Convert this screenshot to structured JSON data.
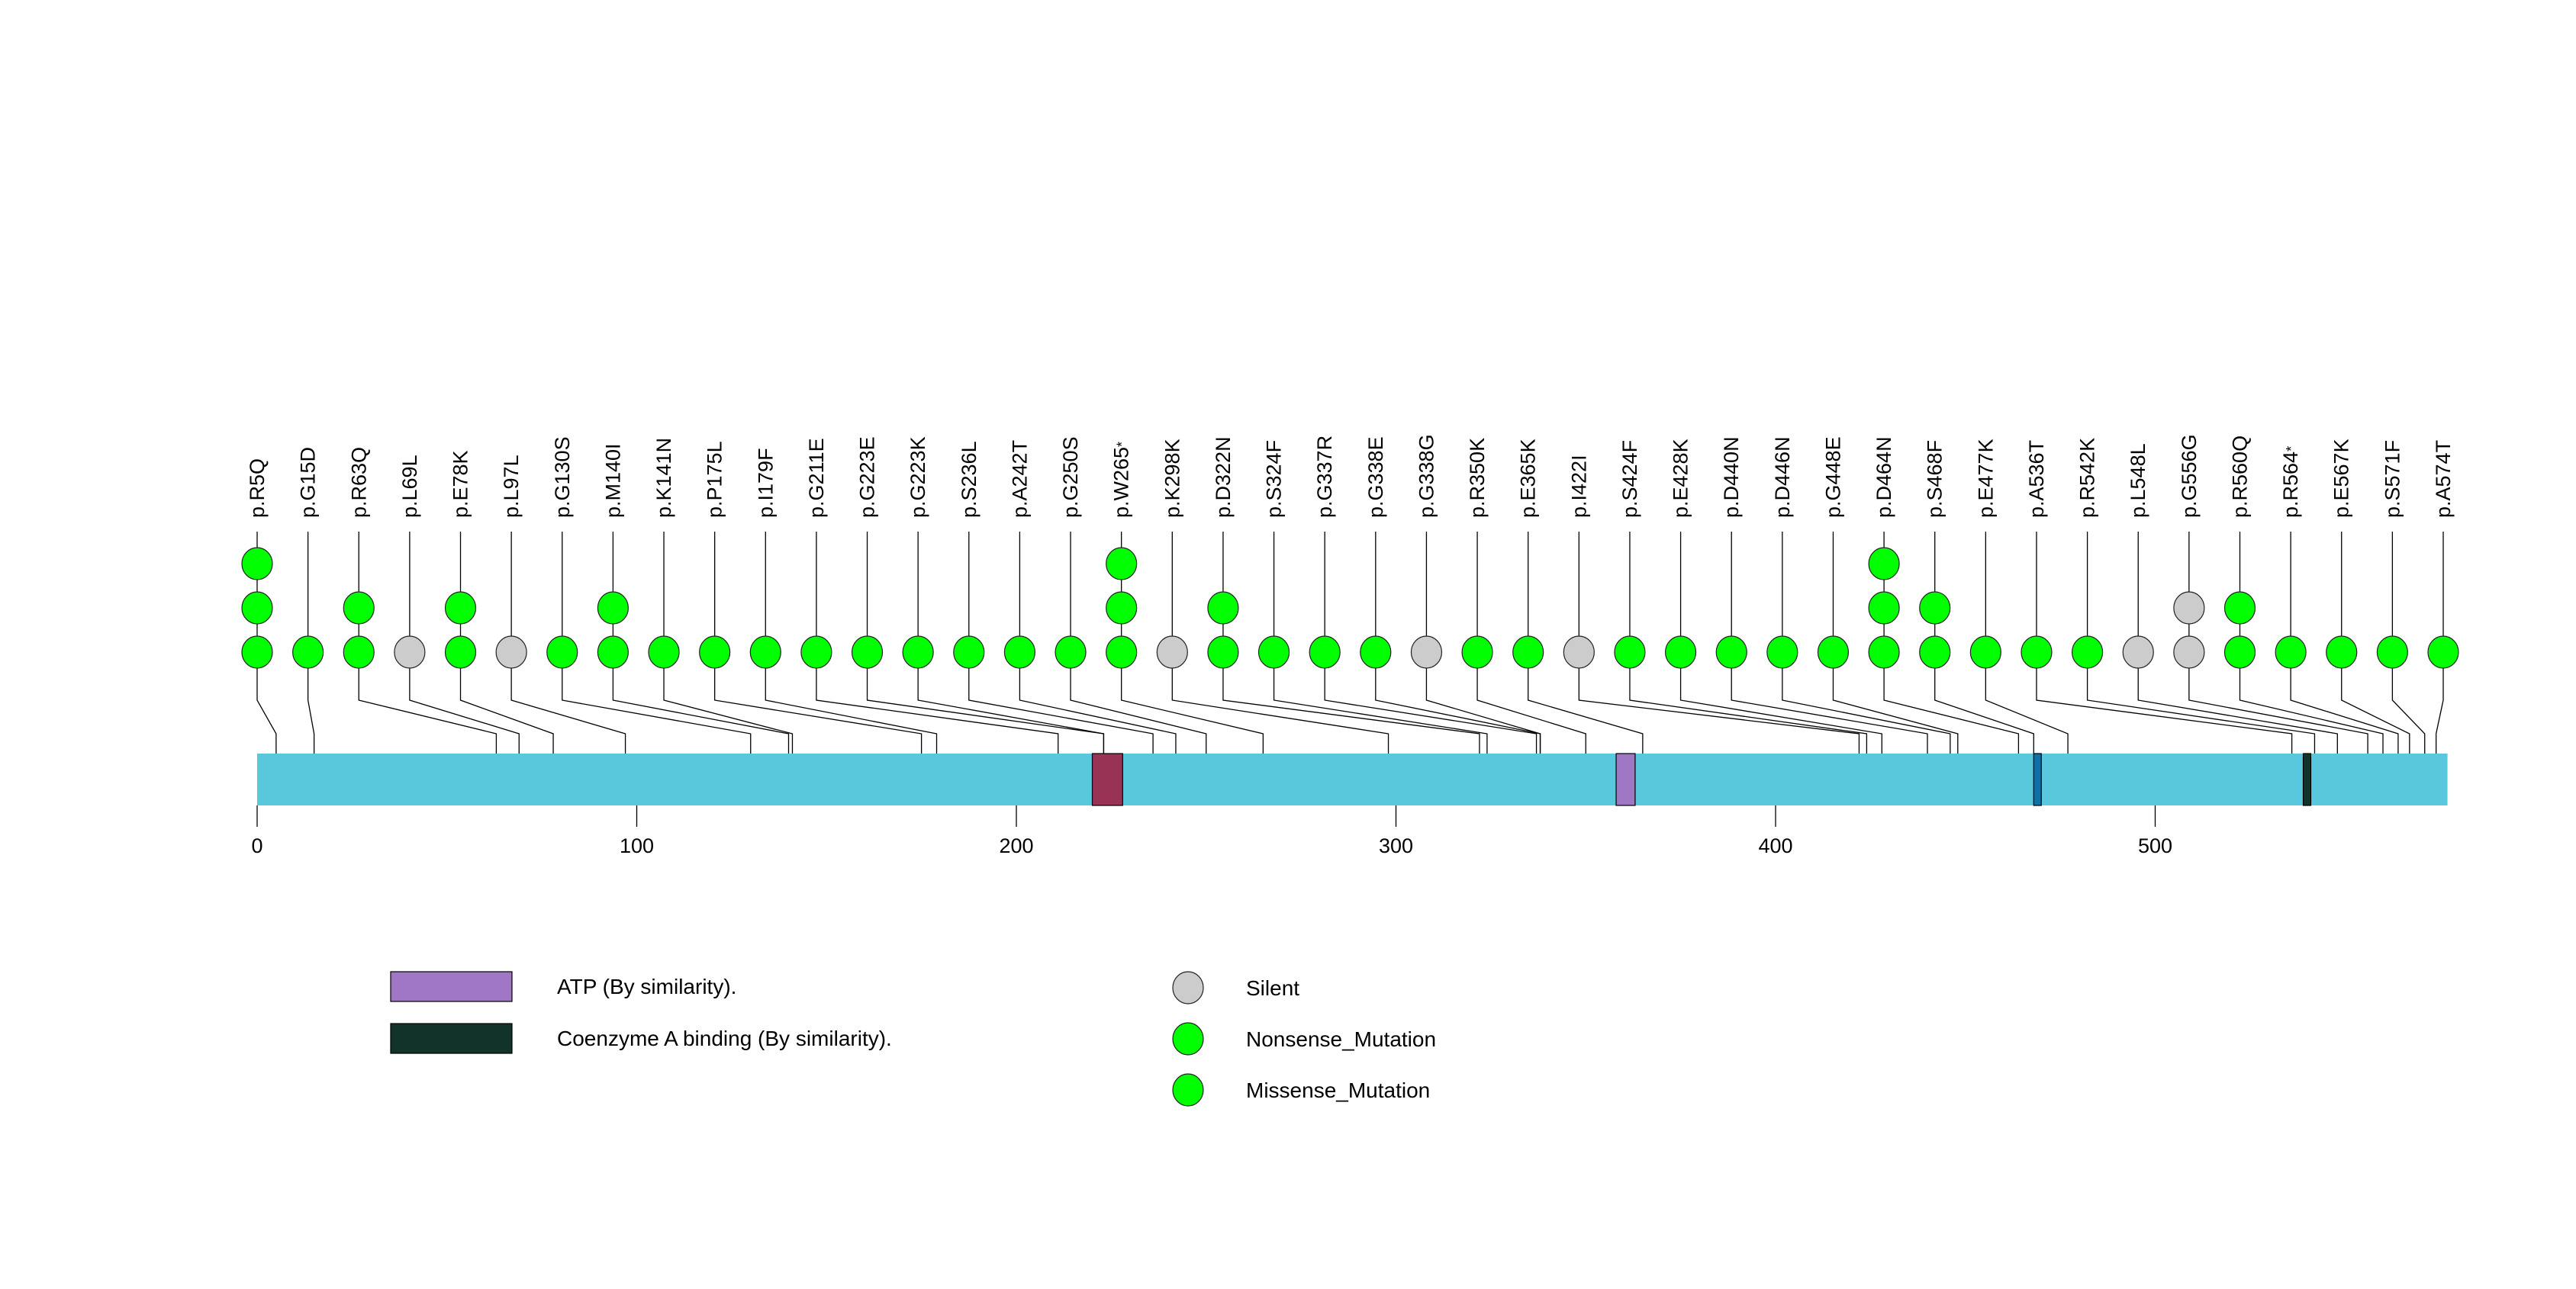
{
  "chart_data": {
    "type": "lollipop",
    "title": "",
    "xlabel": "",
    "ylabel": "",
    "protein_length": 577,
    "xlim": [
      0,
      577
    ],
    "x_ticks": [
      0,
      100,
      200,
      300,
      400,
      500
    ],
    "x_tick_labels": [
      "0",
      "100",
      "200",
      "300",
      "400",
      "500"
    ],
    "protein_color": "#5AC8DC",
    "domains": [
      {
        "name": "region-1",
        "start": 220,
        "end": 228,
        "color": "#993355",
        "in_legend": false
      },
      {
        "name": "ATP (By similarity).",
        "start": 358,
        "end": 363,
        "color": "#A077C4",
        "in_legend": true
      },
      {
        "name": "region-3",
        "start": 468,
        "end": 470,
        "color": "#1071A6",
        "in_legend": false
      },
      {
        "name": "Coenzyme A binding (By similarity).",
        "start": 539,
        "end": 541,
        "color": "#12332A",
        "in_legend": true
      }
    ],
    "mutation_types": [
      {
        "name": "Silent",
        "color": "#CCCCCC"
      },
      {
        "name": "Nonsense_Mutation",
        "color": "#00FF00"
      },
      {
        "name": "Missense_Mutation",
        "color": "#00FF00"
      }
    ],
    "mutations": [
      {
        "label": "p.R5Q",
        "position": 5,
        "counts": [
          "Missense_Mutation",
          "Missense_Mutation",
          "Missense_Mutation"
        ]
      },
      {
        "label": "p.G15D",
        "position": 15,
        "counts": [
          "Missense_Mutation"
        ]
      },
      {
        "label": "p.R63Q",
        "position": 63,
        "counts": [
          "Missense_Mutation",
          "Missense_Mutation"
        ]
      },
      {
        "label": "p.L69L",
        "position": 69,
        "counts": [
          "Silent"
        ]
      },
      {
        "label": "p.E78K",
        "position": 78,
        "counts": [
          "Missense_Mutation",
          "Missense_Mutation"
        ]
      },
      {
        "label": "p.L97L",
        "position": 97,
        "counts": [
          "Silent"
        ]
      },
      {
        "label": "p.G130S",
        "position": 130,
        "counts": [
          "Missense_Mutation"
        ]
      },
      {
        "label": "p.M140I",
        "position": 140,
        "counts": [
          "Missense_Mutation",
          "Missense_Mutation"
        ]
      },
      {
        "label": "p.K141N",
        "position": 141,
        "counts": [
          "Missense_Mutation"
        ]
      },
      {
        "label": "p.P175L",
        "position": 175,
        "counts": [
          "Missense_Mutation"
        ]
      },
      {
        "label": "p.I179F",
        "position": 179,
        "counts": [
          "Missense_Mutation"
        ]
      },
      {
        "label": "p.G211E",
        "position": 211,
        "counts": [
          "Missense_Mutation"
        ]
      },
      {
        "label": "p.G223E",
        "position": 223,
        "counts": [
          "Missense_Mutation"
        ]
      },
      {
        "label": "p.G223K",
        "position": 223,
        "counts": [
          "Missense_Mutation"
        ]
      },
      {
        "label": "p.S236L",
        "position": 236,
        "counts": [
          "Missense_Mutation"
        ]
      },
      {
        "label": "p.A242T",
        "position": 242,
        "counts": [
          "Missense_Mutation"
        ]
      },
      {
        "label": "p.G250S",
        "position": 250,
        "counts": [
          "Missense_Mutation"
        ]
      },
      {
        "label": "p.W265*",
        "position": 265,
        "counts": [
          "Nonsense_Mutation",
          "Nonsense_Mutation",
          "Nonsense_Mutation"
        ]
      },
      {
        "label": "p.K298K",
        "position": 298,
        "counts": [
          "Silent"
        ]
      },
      {
        "label": "p.D322N",
        "position": 322,
        "counts": [
          "Missense_Mutation",
          "Missense_Mutation"
        ]
      },
      {
        "label": "p.S324F",
        "position": 324,
        "counts": [
          "Missense_Mutation"
        ]
      },
      {
        "label": "p.G337R",
        "position": 337,
        "counts": [
          "Missense_Mutation"
        ]
      },
      {
        "label": "p.G338E",
        "position": 338,
        "counts": [
          "Missense_Mutation"
        ]
      },
      {
        "label": "p.G338G",
        "position": 338,
        "counts": [
          "Silent"
        ]
      },
      {
        "label": "p.R350K",
        "position": 350,
        "counts": [
          "Missense_Mutation"
        ]
      },
      {
        "label": "p.E365K",
        "position": 365,
        "counts": [
          "Missense_Mutation"
        ]
      },
      {
        "label": "p.I422I",
        "position": 422,
        "counts": [
          "Silent"
        ]
      },
      {
        "label": "p.S424F",
        "position": 424,
        "counts": [
          "Missense_Mutation"
        ]
      },
      {
        "label": "p.E428K",
        "position": 428,
        "counts": [
          "Missense_Mutation"
        ]
      },
      {
        "label": "p.D440N",
        "position": 440,
        "counts": [
          "Missense_Mutation"
        ]
      },
      {
        "label": "p.D446N",
        "position": 446,
        "counts": [
          "Missense_Mutation"
        ]
      },
      {
        "label": "p.G448E",
        "position": 448,
        "counts": [
          "Missense_Mutation"
        ]
      },
      {
        "label": "p.D464N",
        "position": 464,
        "counts": [
          "Missense_Mutation",
          "Missense_Mutation",
          "Missense_Mutation"
        ]
      },
      {
        "label": "p.S468F",
        "position": 468,
        "counts": [
          "Missense_Mutation",
          "Missense_Mutation"
        ]
      },
      {
        "label": "p.E477K",
        "position": 477,
        "counts": [
          "Missense_Mutation"
        ]
      },
      {
        "label": "p.A536T",
        "position": 536,
        "counts": [
          "Missense_Mutation"
        ]
      },
      {
        "label": "p.R542K",
        "position": 542,
        "counts": [
          "Missense_Mutation"
        ]
      },
      {
        "label": "p.L548L",
        "position": 548,
        "counts": [
          "Silent"
        ]
      },
      {
        "label": "p.G556G",
        "position": 556,
        "counts": [
          "Silent",
          "Silent"
        ]
      },
      {
        "label": "p.R560Q",
        "position": 560,
        "counts": [
          "Missense_Mutation",
          "Missense_Mutation"
        ]
      },
      {
        "label": "p.R564*",
        "position": 564,
        "counts": [
          "Nonsense_Mutation"
        ]
      },
      {
        "label": "p.E567K",
        "position": 567,
        "counts": [
          "Missense_Mutation"
        ]
      },
      {
        "label": "p.S571F",
        "position": 571,
        "counts": [
          "Missense_Mutation"
        ]
      },
      {
        "label": "p.A574T",
        "position": 574,
        "counts": [
          "Missense_Mutation"
        ]
      }
    ],
    "legend": {
      "placement": "bottom",
      "domains": [
        {
          "label": "ATP (By similarity).",
          "color": "#A077C4"
        },
        {
          "label": "Coenzyme A binding (By similarity).",
          "color": "#12332A"
        }
      ],
      "mutation_types": [
        {
          "label": "Silent",
          "color": "#CCCCCC"
        },
        {
          "label": "Nonsense_Mutation",
          "color": "#00FF00"
        },
        {
          "label": "Missense_Mutation",
          "color": "#00FF00"
        }
      ]
    }
  }
}
